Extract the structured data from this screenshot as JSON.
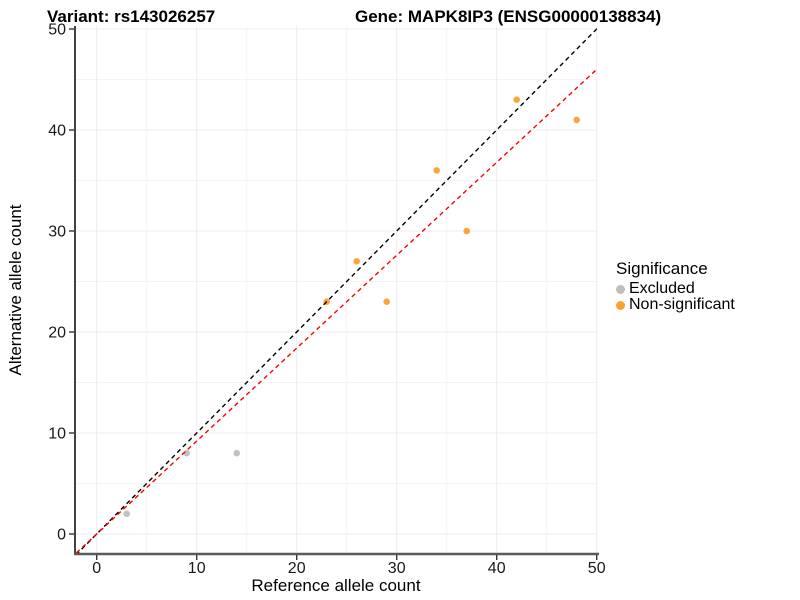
{
  "header": {
    "title_variant": "Variant: rs143026257",
    "title_gene": "Gene: MAPK8IP3 (ENSG00000138834)"
  },
  "legend": {
    "title": "Significance",
    "items": [
      {
        "label": "Excluded",
        "color": "#BEBEBE"
      },
      {
        "label": "Non-significant",
        "color": "#F9A232"
      }
    ]
  },
  "chart_data": {
    "type": "scatter",
    "title": "Variant: rs143026257 / Gene: MAPK8IP3 (ENSG00000138834)",
    "xlabel": "Reference allele count",
    "ylabel": "Alternative allele count",
    "x_ticks": [
      0,
      10,
      20,
      30,
      40,
      50
    ],
    "y_ticks": [
      0,
      10,
      20,
      30,
      40,
      50
    ],
    "minor_ticks": [
      5,
      15,
      25,
      35,
      45
    ],
    "xlim": [
      -2.2,
      50.05
    ],
    "ylim": [
      -2.0,
      50.3
    ],
    "grid": true,
    "legend_position": "right",
    "series": [
      {
        "name": "Excluded",
        "color": "#BEBEBE",
        "points": [
          [
            3,
            2
          ],
          [
            9,
            8
          ],
          [
            14,
            8
          ]
        ]
      },
      {
        "name": "Non-significant",
        "color": "#F9A232",
        "points": [
          [
            23,
            23
          ],
          [
            26,
            27
          ],
          [
            29,
            23
          ],
          [
            34,
            36
          ],
          [
            37,
            30
          ],
          [
            42,
            43
          ],
          [
            48,
            41
          ]
        ]
      }
    ],
    "ref_lines": [
      {
        "name": "identity-line",
        "slope": 1.0,
        "intercept": 0,
        "color": "#000000",
        "style": "dashed"
      },
      {
        "name": "expected-ratio-line",
        "slope": 0.92,
        "intercept": 0,
        "color": "#FF0000",
        "style": "dashed"
      }
    ],
    "colors": {
      "grid_major": "#ECECEC",
      "grid_minor": "#F4F4F4",
      "axis_line_left": "#2E2E2E",
      "axis_line_bottom": "#5A5A5A",
      "tick_text": "#1A1A1A"
    }
  }
}
